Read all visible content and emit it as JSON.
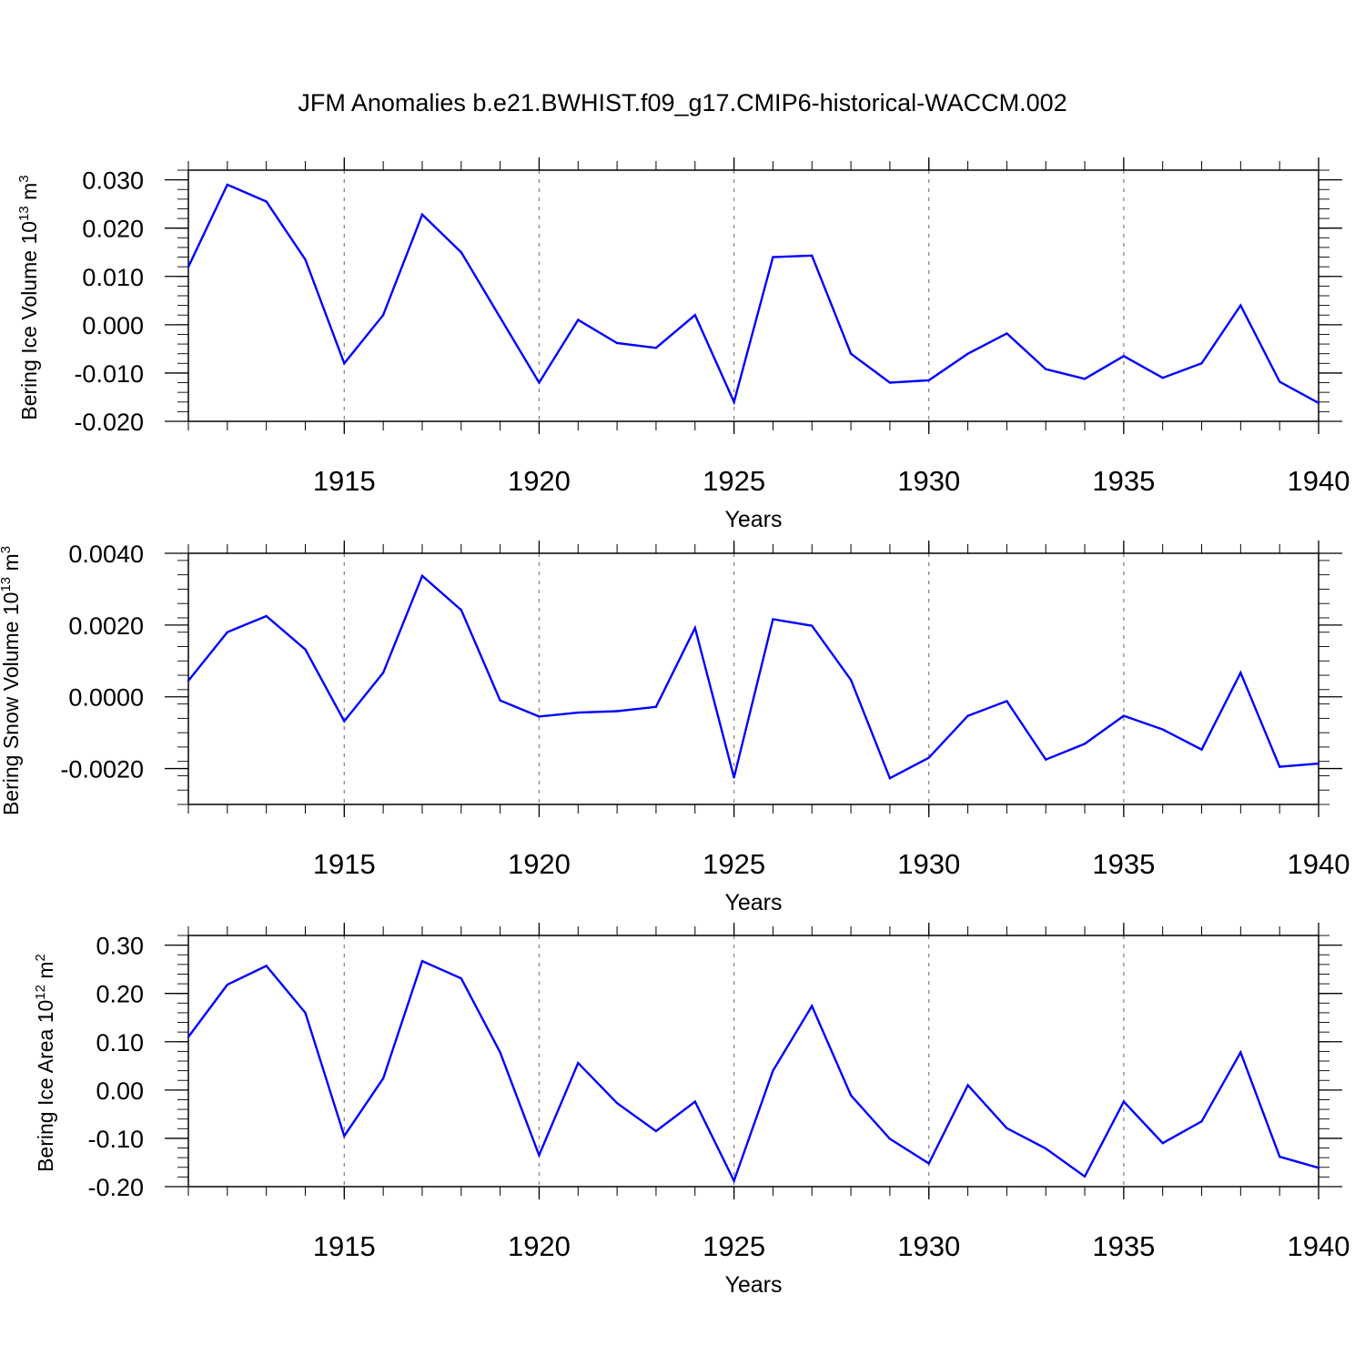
{
  "title": "JFM Anomalies b.e21.BWHIST.f09_g17.CMIP6-historical-WACCM.002",
  "line_color": "#0000ff",
  "chart_data": [
    {
      "type": "line",
      "title": "JFM Anomalies b.e21.BWHIST.f09_g17.CMIP6-historical-WACCM.002",
      "ylabel_text": "Bering Ice Volume 10",
      "ylabel_exp": "13",
      "ylabel_unit": " m",
      "ylabel_unit_exp": "3",
      "xlabel": "Years",
      "xlim": [
        1911,
        1940
      ],
      "ylim": [
        -0.02,
        0.032
      ],
      "yticks": [
        -0.02,
        -0.01,
        0.0,
        0.01,
        0.02,
        0.03
      ],
      "ytick_labels": [
        "-0.020",
        "-0.010",
        "0.000",
        "0.010",
        "0.020",
        "0.030"
      ],
      "xticks": [
        1915,
        1920,
        1925,
        1930,
        1935,
        1940
      ],
      "xtick_labels": [
        "1915",
        "1920",
        "1925",
        "1930",
        "1935",
        "1940"
      ],
      "grid": "vertical dashed at labeled years",
      "x": [
        1911,
        1912,
        1913,
        1914,
        1915,
        1916,
        1917,
        1918,
        1919,
        1920,
        1921,
        1922,
        1923,
        1924,
        1925,
        1926,
        1927,
        1928,
        1929,
        1930,
        1931,
        1932,
        1933,
        1934,
        1935,
        1936,
        1937,
        1938,
        1939,
        1940
      ],
      "values": [
        0.012,
        0.029,
        0.0255,
        0.0135,
        -0.008,
        0.002,
        0.0228,
        0.015,
        0.0015,
        -0.012,
        0.001,
        -0.0038,
        -0.0048,
        0.002,
        -0.016,
        0.014,
        0.0143,
        -0.006,
        -0.012,
        -0.0115,
        -0.006,
        -0.0018,
        -0.0092,
        -0.0112,
        -0.0065,
        -0.011,
        -0.008,
        0.004,
        -0.0118,
        -0.0162
      ]
    },
    {
      "type": "line",
      "ylabel_text": "Bering Snow Volume 10",
      "ylabel_exp": "13",
      "ylabel_unit": " m",
      "ylabel_unit_exp": "3",
      "xlabel": "Years",
      "xlim": [
        1911,
        1940
      ],
      "ylim": [
        -0.003,
        0.004
      ],
      "yticks": [
        -0.002,
        0.0,
        0.002,
        0.004
      ],
      "ytick_labels": [
        "-0.0020",
        "0.0000",
        "0.0020",
        "0.0040"
      ],
      "xticks": [
        1915,
        1920,
        1925,
        1930,
        1935,
        1940
      ],
      "xtick_labels": [
        "1915",
        "1920",
        "1925",
        "1930",
        "1935",
        "1940"
      ],
      "grid": "vertical dashed at labeled years",
      "x": [
        1911,
        1912,
        1913,
        1914,
        1915,
        1916,
        1917,
        1918,
        1919,
        1920,
        1921,
        1922,
        1923,
        1924,
        1925,
        1926,
        1927,
        1928,
        1929,
        1930,
        1931,
        1932,
        1933,
        1934,
        1935,
        1936,
        1937,
        1938,
        1939,
        1940
      ],
      "values": [
        0.00045,
        0.0018,
        0.00225,
        0.00132,
        -0.00068,
        0.00067,
        0.00337,
        0.00242,
        -0.0001,
        -0.00055,
        -0.00044,
        -0.0004,
        -0.00028,
        0.00192,
        -0.00225,
        0.00216,
        0.00198,
        0.00047,
        -0.00227,
        -0.0017,
        -0.00053,
        -0.00012,
        -0.00175,
        -0.00131,
        -0.00053,
        -0.00091,
        -0.00147,
        0.00067,
        -0.00195,
        -0.00186
      ]
    },
    {
      "type": "line",
      "ylabel_text": "Bering Ice Area 10",
      "ylabel_exp": "12",
      "ylabel_unit": " m",
      "ylabel_unit_exp": "2",
      "xlabel": "Years",
      "xlim": [
        1911,
        1940
      ],
      "ylim": [
        -0.2,
        0.32
      ],
      "yticks": [
        -0.2,
        -0.1,
        0.0,
        0.1,
        0.2,
        0.3
      ],
      "ytick_labels": [
        "-0.20",
        "-0.10",
        "0.00",
        "0.10",
        "0.20",
        "0.30"
      ],
      "xticks": [
        1915,
        1920,
        1925,
        1930,
        1935,
        1940
      ],
      "xtick_labels": [
        "1915",
        "1920",
        "1925",
        "1930",
        "1935",
        "1940"
      ],
      "grid": "vertical dashed at labeled years",
      "x": [
        1911,
        1912,
        1913,
        1914,
        1915,
        1916,
        1917,
        1918,
        1919,
        1920,
        1921,
        1922,
        1923,
        1924,
        1925,
        1926,
        1927,
        1928,
        1929,
        1930,
        1931,
        1932,
        1933,
        1934,
        1935,
        1936,
        1937,
        1938,
        1939,
        1940
      ],
      "values": [
        0.11,
        0.218,
        0.257,
        0.16,
        -0.095,
        0.024,
        0.267,
        0.231,
        0.078,
        -0.135,
        0.056,
        -0.027,
        -0.085,
        -0.024,
        -0.188,
        0.04,
        0.174,
        -0.011,
        -0.101,
        -0.152,
        0.01,
        -0.079,
        -0.121,
        -0.179,
        -0.024,
        -0.11,
        -0.065,
        0.078,
        -0.138,
        -0.161
      ]
    }
  ]
}
